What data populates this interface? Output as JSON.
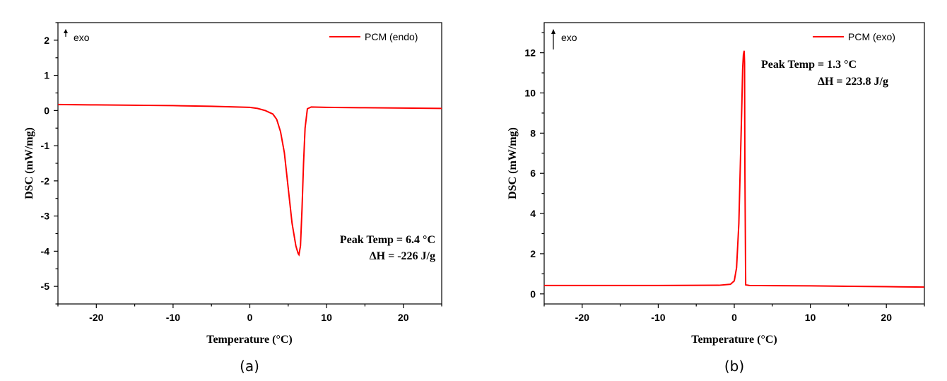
{
  "colors": {
    "series": "#ff0000",
    "axis": "#000000"
  },
  "chart_data": [
    {
      "type": "line",
      "panel_label": "(a)",
      "xlabel": "Temperature (°C)",
      "ylabel": "DSC (mW/mg)",
      "xlim": [
        -25,
        25
      ],
      "ylim": [
        -5.5,
        2.5
      ],
      "xticks": [
        -20,
        -10,
        0,
        10,
        20
      ],
      "xtick_labels": [
        "-20",
        "-10",
        "0",
        "10",
        "20"
      ],
      "yticks": [
        -5,
        -4,
        -3,
        -2,
        -1,
        0,
        1,
        2
      ],
      "ytick_labels": [
        "-5",
        "-4",
        "-3",
        "-2",
        "-1",
        "0",
        "1",
        "2"
      ],
      "grid": false,
      "legend": "top-right",
      "exo_label": "exo",
      "series": [
        {
          "name": "PCM (endo)",
          "x": [
            -25,
            -20,
            -15,
            -10,
            -5,
            0,
            1,
            2,
            3,
            3.5,
            4,
            4.5,
            5,
            5.5,
            6,
            6.3,
            6.4,
            6.6,
            6.8,
            7,
            7.2,
            7.5,
            8,
            10,
            15,
            20,
            25
          ],
          "y": [
            0.17,
            0.16,
            0.15,
            0.14,
            0.12,
            0.09,
            0.06,
            0.0,
            -0.1,
            -0.25,
            -0.6,
            -1.2,
            -2.2,
            -3.2,
            -3.85,
            -4.07,
            -4.1,
            -3.85,
            -2.8,
            -1.5,
            -0.5,
            0.05,
            0.1,
            0.09,
            0.08,
            0.07,
            0.06
          ]
        }
      ],
      "annotations": [
        "Peak Temp = 6.4 °C",
        "ΔH =  -226 J/g"
      ]
    },
    {
      "type": "line",
      "panel_label": "(b)",
      "xlabel": "Temperature (°C)",
      "ylabel": "DSC (mW/mg)",
      "xlim": [
        -25,
        25
      ],
      "ylim": [
        -0.5,
        13.5
      ],
      "xticks": [
        -20,
        -10,
        0,
        10,
        20
      ],
      "xtick_labels": [
        "-20",
        "-10",
        "0",
        "10",
        "20"
      ],
      "yticks": [
        0,
        2,
        4,
        6,
        8,
        10,
        12
      ],
      "ytick_labels": [
        "0",
        "2",
        "4",
        "6",
        "8",
        "10",
        "12"
      ],
      "grid": false,
      "legend": "top-right",
      "exo_label": "exo",
      "series": [
        {
          "name": "PCM (exo)",
          "x": [
            -25,
            -20,
            -10,
            -2,
            -0.5,
            0,
            0.3,
            0.6,
            0.8,
            1.0,
            1.1,
            1.2,
            1.3,
            1.35,
            1.4,
            1.5,
            2,
            5,
            10,
            15,
            20,
            25
          ],
          "y": [
            0.42,
            0.42,
            0.42,
            0.43,
            0.48,
            0.65,
            1.3,
            3.5,
            6.5,
            9.5,
            11.2,
            11.9,
            12.1,
            11.5,
            6,
            0.45,
            0.42,
            0.41,
            0.4,
            0.38,
            0.36,
            0.34
          ]
        }
      ],
      "annotations": [
        "Peak Temp = 1.3 °C",
        "ΔH =  223.8 J/g"
      ]
    }
  ]
}
